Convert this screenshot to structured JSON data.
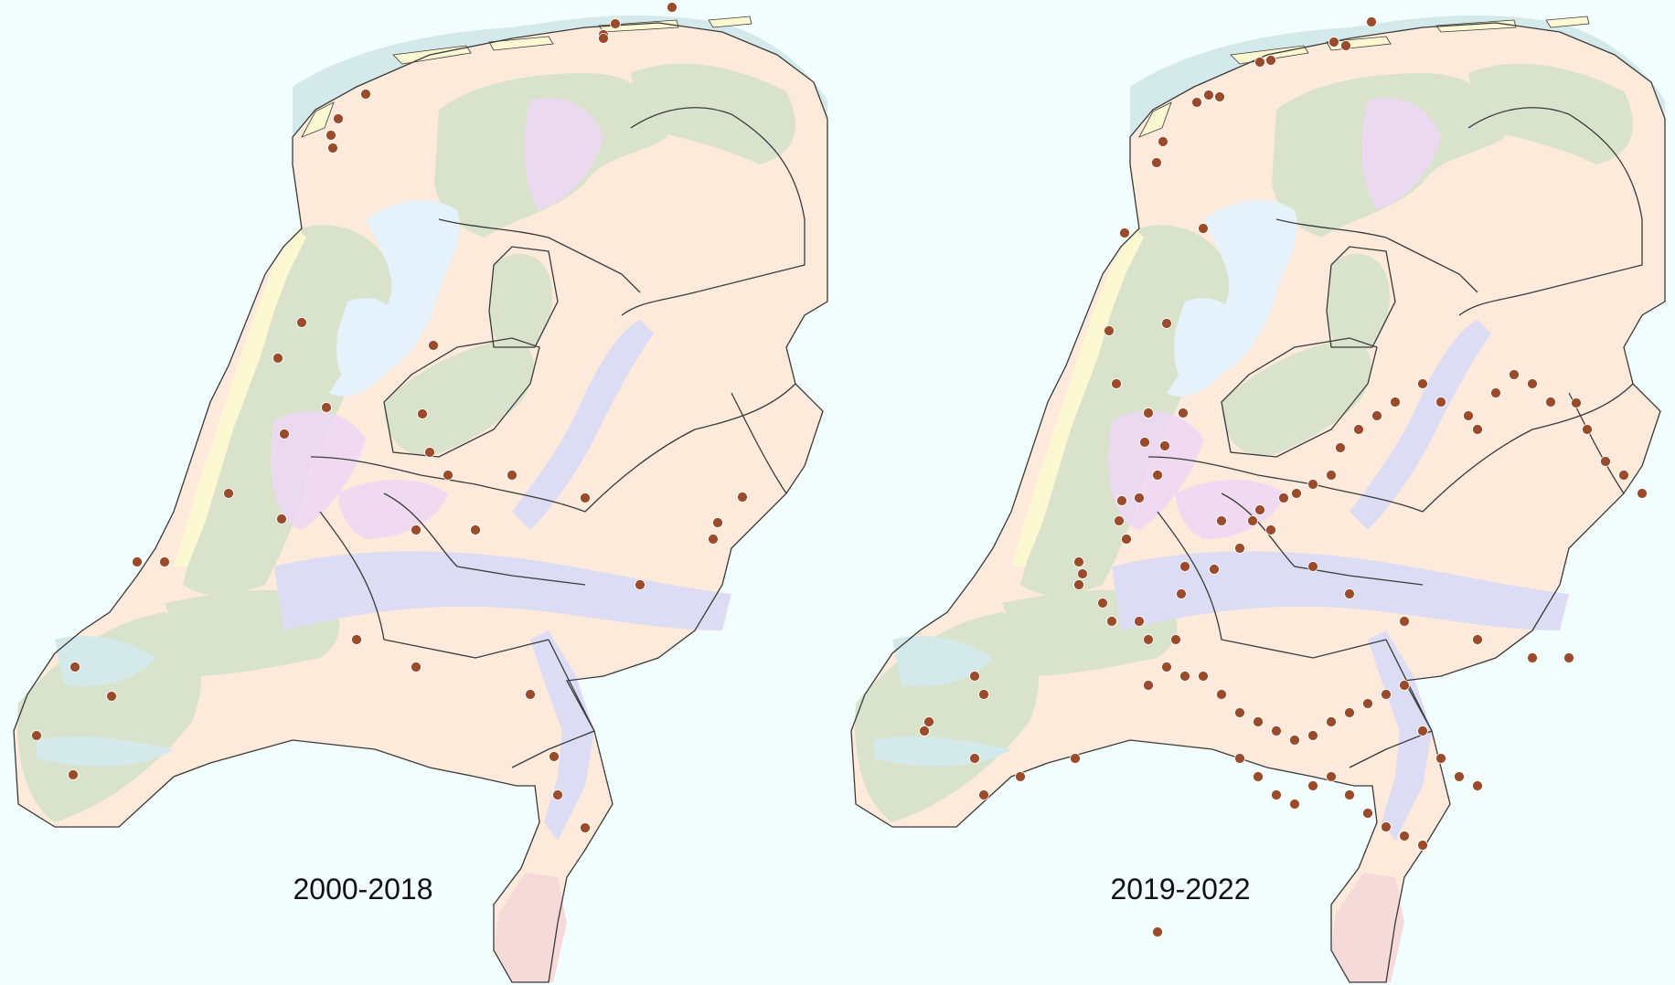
{
  "maps": [
    {
      "period_label": "2000-2018",
      "observations": [
        [
          104,
          -1
        ],
        [
          96,
          -2
        ],
        [
          95,
          -4
        ],
        [
          95,
          -2
        ],
        [
          73,
          -5
        ],
        [
          -36,
          -14
        ],
        [
          -31,
          -11
        ],
        [
          -21,
          -9
        ],
        [
          -17,
          -8
        ],
        [
          -13,
          -7
        ],
        [
          -18,
          -7
        ],
        [
          -19,
          -6
        ],
        [
          16,
          -6
        ],
        [
          -20,
          -5
        ],
        [
          -26,
          -5
        ],
        [
          -19,
          -4
        ],
        [
          -35,
          -3
        ],
        [
          -32,
          -3
        ],
        [
          -23,
          -3
        ],
        [
          60,
          -2
        ],
        [
          -36,
          -1
        ],
        [
          -36,
          0
        ],
        [
          -20,
          1
        ],
        [
          -22,
          1
        ],
        [
          -23,
          1
        ],
        [
          -63,
          -1
        ],
        [
          4,
          0
        ],
        [
          -15,
          0
        ],
        [
          -2,
          0
        ],
        [
          38,
          -1
        ],
        [
          74,
          -1
        ],
        [
          58,
          1
        ],
        [
          106,
          2
        ],
        [
          34,
          1
        ],
        [
          10,
          3
        ],
        [
          -54,
          3
        ],
        [
          -25,
          1
        ],
        [
          -54,
          0
        ]
      ]
    },
    {
      "period_label": "2019-2022",
      "observations": [
        [
          108,
          -1
        ],
        [
          108,
          -3
        ],
        [
          102,
          -4
        ],
        [
          102,
          -2
        ],
        [
          62,
          -4
        ],
        [
          68,
          -3
        ],
        [
          70,
          -5
        ],
        [
          84,
          -2
        ],
        [
          88,
          -2
        ],
        [
          93,
          -2
        ],
        [
          80,
          -4
        ]
      ]
    }
  ],
  "map_colors": {
    "sea": "#f2fefe",
    "wadden": "#d4eaea",
    "lake": "#e5f1fb",
    "clay_green": "#d9e3cc",
    "sand_peach": "#fdeadb",
    "peat_pink": "#edd7f4",
    "river_lavender": "#dcdcf5",
    "dune_yellow": "#fbf8d2",
    "limburg_pink": "#f6d9d9",
    "border": "#3a3a3a",
    "dot": "#9b4a2a"
  }
}
